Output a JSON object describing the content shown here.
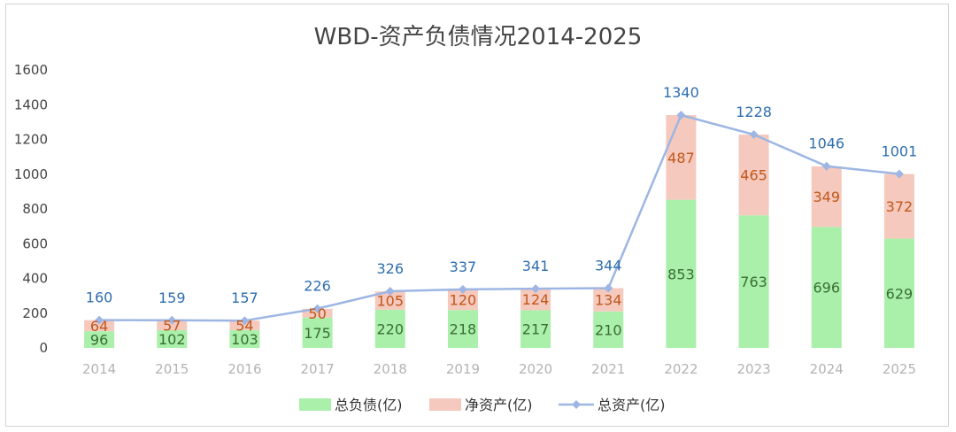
{
  "chart_data": {
    "type": "bar",
    "title": "WBD-资产负债情况2014-2025",
    "categories": [
      "2014",
      "2015",
      "2016",
      "2017",
      "2018",
      "2019",
      "2020",
      "2021",
      "2022",
      "2023",
      "2024",
      "2025"
    ],
    "series": [
      {
        "name": "总负债(亿)",
        "kind": "stacked-bar",
        "color": "#aaf0aa",
        "label_color": "#3a6d34",
        "values": [
          96,
          102,
          103,
          175,
          220,
          218,
          217,
          210,
          853,
          763,
          696,
          629
        ]
      },
      {
        "name": "净资产(亿)",
        "kind": "stacked-bar",
        "color": "#f5c9bd",
        "label_color": "#c0581c",
        "values": [
          64,
          57,
          54,
          50,
          105,
          120,
          124,
          134,
          487,
          465,
          349,
          372
        ]
      },
      {
        "name": "总资产(亿)",
        "kind": "line",
        "color": "#9db6e3",
        "label_color": "#2e6eae",
        "values": [
          160,
          159,
          157,
          226,
          326,
          337,
          341,
          344,
          1340,
          1228,
          1046,
          1001
        ]
      }
    ],
    "ylim": [
      0,
      1600
    ],
    "yticks": [
      "0",
      "200",
      "400",
      "600",
      "800",
      "1000",
      "1200",
      "1400",
      "1600"
    ],
    "grid": false,
    "legend_position": "bottom"
  }
}
